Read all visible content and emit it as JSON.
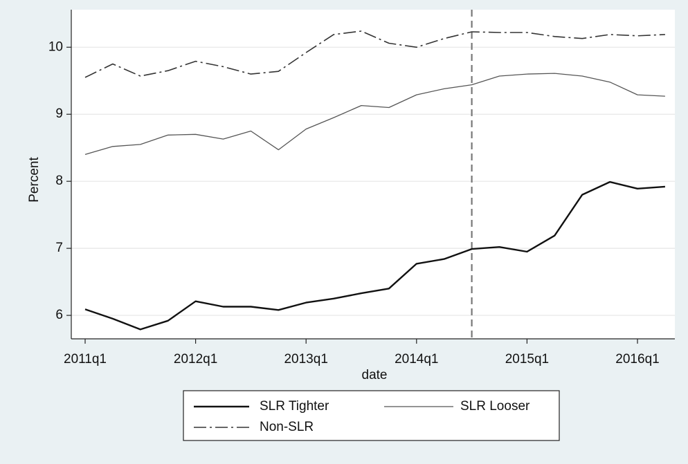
{
  "chart_data": {
    "type": "line",
    "y_label": "Percent",
    "x_label": "date",
    "categories": [
      "2011q1",
      null,
      null,
      null,
      "2012q1",
      null,
      null,
      null,
      "2013q1",
      null,
      null,
      null,
      "2014q1",
      null,
      null,
      null,
      "2015q1",
      null,
      null,
      null,
      "2016q1",
      null
    ],
    "series": [
      {
        "name": "SLR Tighter",
        "color": "#111111",
        "style": "solid",
        "width": 2.4,
        "values": [
          6.09,
          5.95,
          5.79,
          5.92,
          6.21,
          6.13,
          6.13,
          6.08,
          6.19,
          6.25,
          6.33,
          6.4,
          6.77,
          6.84,
          6.99,
          7.02,
          6.95,
          7.19,
          7.8,
          7.99,
          7.89,
          7.92
        ]
      },
      {
        "name": "SLR Looser",
        "color": "#555555",
        "style": "solid",
        "width": 1.3,
        "values": [
          8.4,
          8.52,
          8.55,
          8.69,
          8.7,
          8.63,
          8.75,
          8.47,
          8.78,
          8.95,
          9.13,
          9.1,
          9.29,
          9.38,
          9.44,
          9.57,
          9.6,
          9.61,
          9.57,
          9.48,
          9.29,
          9.27
        ]
      },
      {
        "name": "Non-SLR",
        "color": "#333333",
        "style": "dashdot",
        "width": 1.6,
        "values": [
          9.55,
          9.75,
          9.57,
          9.65,
          9.79,
          9.71,
          9.6,
          9.64,
          9.92,
          10.19,
          10.24,
          10.06,
          10.0,
          10.13,
          10.23,
          10.22,
          10.22,
          10.16,
          10.13,
          10.19,
          10.17,
          10.19
        ]
      }
    ],
    "ylim": [
      5.65,
      10.56
    ],
    "yticks": [
      6,
      7,
      8,
      9,
      10
    ],
    "grid": true,
    "reference_line_index": 14,
    "reference_line_color": "#777777"
  }
}
